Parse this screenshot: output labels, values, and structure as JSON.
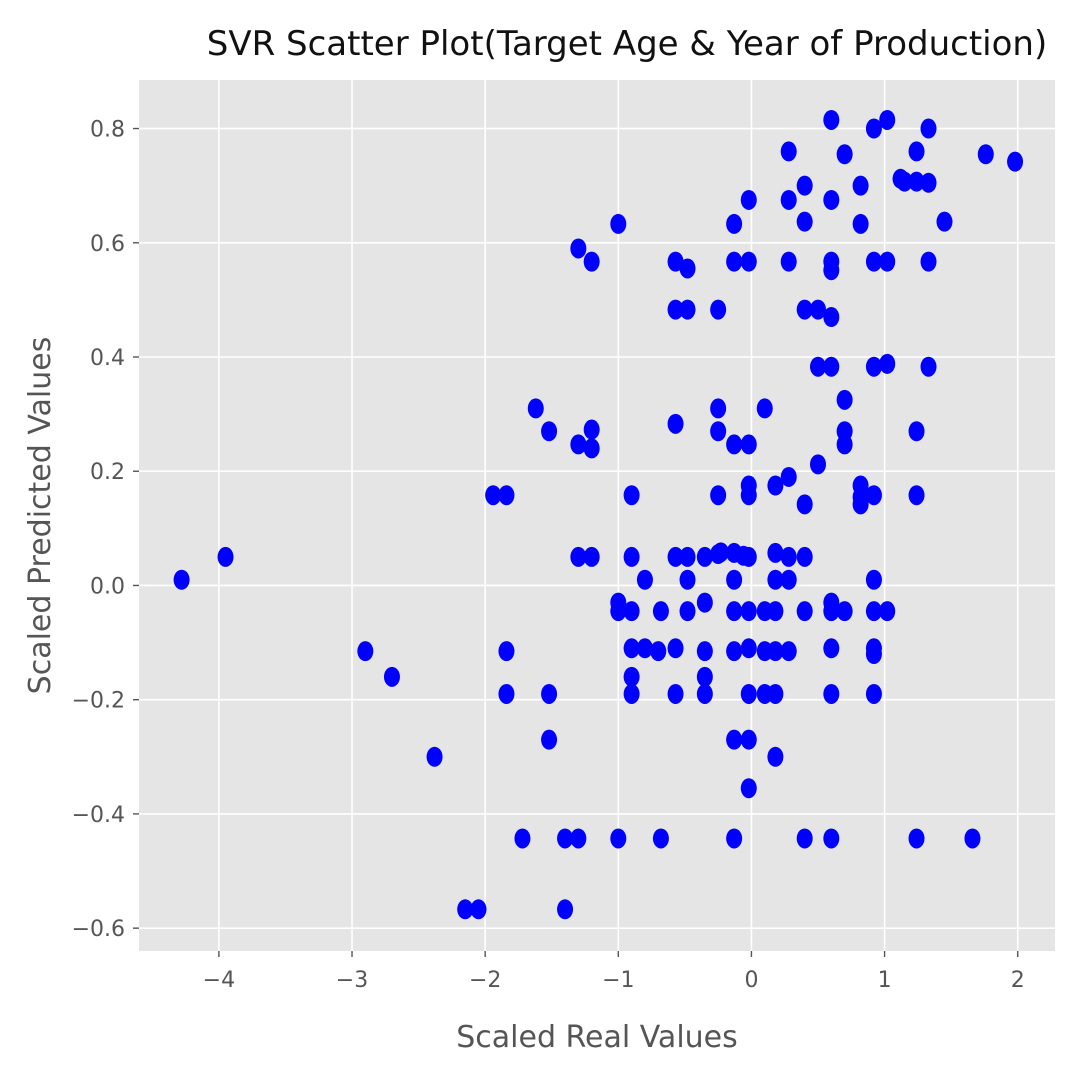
{
  "chart_data": {
    "type": "scatter",
    "title": "SVR Scatter Plot(Target Age & Year of Production)",
    "xlabel": "Scaled Real Values",
    "ylabel": "Scaled Predicted Values",
    "xlim": [
      -4.6,
      2.28
    ],
    "ylim": [
      -0.64,
      0.885
    ],
    "xticks": [
      -4,
      -3,
      -2,
      -1,
      0,
      1,
      2
    ],
    "xtick_labels": [
      "−4",
      "−3",
      "−2",
      "−1",
      "0",
      "1",
      "2"
    ],
    "yticks": [
      -0.6,
      -0.4,
      -0.2,
      0.0,
      0.2,
      0.4,
      0.6,
      0.8
    ],
    "ytick_labels": [
      "−0.6",
      "−0.4",
      "−0.2",
      "0.0",
      "0.2",
      "0.4",
      "0.6",
      "0.8"
    ],
    "grid": true,
    "style": "ggplot",
    "colors": {
      "point": "#0000ff",
      "panel": "#e5e5e5",
      "grid": "#ffffff"
    },
    "series": [
      {
        "points": [
          [
            0.6,
            0.815
          ],
          [
            1.02,
            0.815
          ],
          [
            0.92,
            0.8
          ],
          [
            1.33,
            0.8
          ],
          [
            0.28,
            0.76
          ],
          [
            0.7,
            0.755
          ],
          [
            1.24,
            0.76
          ],
          [
            1.76,
            0.755
          ],
          [
            1.98,
            0.742
          ],
          [
            1.12,
            0.712
          ],
          [
            1.15,
            0.707
          ],
          [
            1.24,
            0.707
          ],
          [
            1.33,
            0.705
          ],
          [
            0.4,
            0.7
          ],
          [
            0.82,
            0.7
          ],
          [
            -0.02,
            0.675
          ],
          [
            0.28,
            0.675
          ],
          [
            0.6,
            0.675
          ],
          [
            -1.0,
            0.633
          ],
          [
            -0.13,
            0.633
          ],
          [
            0.4,
            0.637
          ],
          [
            0.82,
            0.633
          ],
          [
            1.45,
            0.637
          ],
          [
            -1.3,
            0.59
          ],
          [
            -1.2,
            0.567
          ],
          [
            -0.57,
            0.567
          ],
          [
            -0.48,
            0.555
          ],
          [
            -0.13,
            0.567
          ],
          [
            -0.02,
            0.567
          ],
          [
            0.28,
            0.567
          ],
          [
            0.6,
            0.567
          ],
          [
            0.6,
            0.552
          ],
          [
            0.92,
            0.567
          ],
          [
            1.02,
            0.567
          ],
          [
            1.33,
            0.567
          ],
          [
            -0.57,
            0.483
          ],
          [
            -0.48,
            0.483
          ],
          [
            -0.25,
            0.483
          ],
          [
            0.4,
            0.483
          ],
          [
            0.5,
            0.483
          ],
          [
            0.6,
            0.47
          ],
          [
            0.5,
            0.383
          ],
          [
            0.6,
            0.383
          ],
          [
            0.92,
            0.383
          ],
          [
            1.02,
            0.388
          ],
          [
            1.33,
            0.383
          ],
          [
            0.7,
            0.325
          ],
          [
            -1.62,
            0.31
          ],
          [
            -0.25,
            0.31
          ],
          [
            0.1,
            0.31
          ],
          [
            -1.52,
            0.27
          ],
          [
            -1.2,
            0.273
          ],
          [
            -0.57,
            0.283
          ],
          [
            -0.25,
            0.27
          ],
          [
            0.7,
            0.27
          ],
          [
            1.24,
            0.27
          ],
          [
            -1.3,
            0.247
          ],
          [
            -1.2,
            0.24
          ],
          [
            -0.13,
            0.247
          ],
          [
            -0.02,
            0.247
          ],
          [
            0.7,
            0.247
          ],
          [
            0.5,
            0.212
          ],
          [
            0.28,
            0.19
          ],
          [
            0.18,
            0.175
          ],
          [
            -0.02,
            0.175
          ],
          [
            0.82,
            0.175
          ],
          [
            -1.94,
            0.158
          ],
          [
            -1.84,
            0.158
          ],
          [
            -0.9,
            0.158
          ],
          [
            -0.25,
            0.158
          ],
          [
            -0.02,
            0.158
          ],
          [
            0.92,
            0.158
          ],
          [
            1.24,
            0.158
          ],
          [
            0.4,
            0.142
          ],
          [
            0.82,
            0.142
          ],
          [
            0.82,
            0.155
          ],
          [
            -3.95,
            0.05
          ],
          [
            -1.3,
            0.05
          ],
          [
            -1.2,
            0.05
          ],
          [
            -0.9,
            0.05
          ],
          [
            -0.57,
            0.05
          ],
          [
            -0.48,
            0.05
          ],
          [
            -0.35,
            0.05
          ],
          [
            -0.25,
            0.055
          ],
          [
            -0.23,
            0.058
          ],
          [
            -0.13,
            0.057
          ],
          [
            -0.06,
            0.052
          ],
          [
            -0.02,
            0.05
          ],
          [
            0.18,
            0.057
          ],
          [
            0.28,
            0.05
          ],
          [
            0.4,
            0.05
          ],
          [
            -4.28,
            0.01
          ],
          [
            -0.8,
            0.01
          ],
          [
            -0.48,
            0.01
          ],
          [
            -0.13,
            0.01
          ],
          [
            0.18,
            0.01
          ],
          [
            0.28,
            0.01
          ],
          [
            0.92,
            0.01
          ],
          [
            -1.0,
            -0.03
          ],
          [
            -0.35,
            -0.03
          ],
          [
            0.6,
            -0.03
          ],
          [
            -1.0,
            -0.045
          ],
          [
            -0.9,
            -0.045
          ],
          [
            -0.68,
            -0.045
          ],
          [
            -0.48,
            -0.045
          ],
          [
            -0.13,
            -0.045
          ],
          [
            -0.02,
            -0.045
          ],
          [
            0.1,
            -0.045
          ],
          [
            0.18,
            -0.045
          ],
          [
            0.4,
            -0.045
          ],
          [
            0.6,
            -0.045
          ],
          [
            0.7,
            -0.045
          ],
          [
            0.92,
            -0.045
          ],
          [
            1.02,
            -0.045
          ],
          [
            -2.9,
            -0.115
          ],
          [
            -1.84,
            -0.115
          ],
          [
            -0.9,
            -0.11
          ],
          [
            -0.8,
            -0.11
          ],
          [
            -0.7,
            -0.115
          ],
          [
            -0.57,
            -0.11
          ],
          [
            -0.35,
            -0.115
          ],
          [
            -0.13,
            -0.115
          ],
          [
            -0.02,
            -0.11
          ],
          [
            0.1,
            -0.115
          ],
          [
            0.18,
            -0.115
          ],
          [
            0.28,
            -0.115
          ],
          [
            0.6,
            -0.11
          ],
          [
            0.92,
            -0.11
          ],
          [
            0.92,
            -0.12
          ],
          [
            -2.7,
            -0.16
          ],
          [
            -0.9,
            -0.16
          ],
          [
            -0.35,
            -0.16
          ],
          [
            -1.84,
            -0.19
          ],
          [
            -1.52,
            -0.19
          ],
          [
            -0.9,
            -0.19
          ],
          [
            -0.57,
            -0.19
          ],
          [
            -0.35,
            -0.19
          ],
          [
            -0.02,
            -0.19
          ],
          [
            0.1,
            -0.19
          ],
          [
            0.18,
            -0.19
          ],
          [
            0.6,
            -0.19
          ],
          [
            0.92,
            -0.19
          ],
          [
            -1.52,
            -0.27
          ],
          [
            -0.13,
            -0.27
          ],
          [
            -0.02,
            -0.27
          ],
          [
            -2.38,
            -0.3
          ],
          [
            0.18,
            -0.3
          ],
          [
            -0.02,
            -0.355
          ],
          [
            -1.72,
            -0.443
          ],
          [
            -1.4,
            -0.443
          ],
          [
            -1.3,
            -0.443
          ],
          [
            -1.0,
            -0.443
          ],
          [
            -0.68,
            -0.443
          ],
          [
            -0.13,
            -0.443
          ],
          [
            0.4,
            -0.443
          ],
          [
            0.6,
            -0.443
          ],
          [
            1.24,
            -0.443
          ],
          [
            1.66,
            -0.443
          ],
          [
            -2.15,
            -0.567
          ],
          [
            -2.05,
            -0.567
          ],
          [
            -1.4,
            -0.567
          ]
        ]
      }
    ]
  }
}
